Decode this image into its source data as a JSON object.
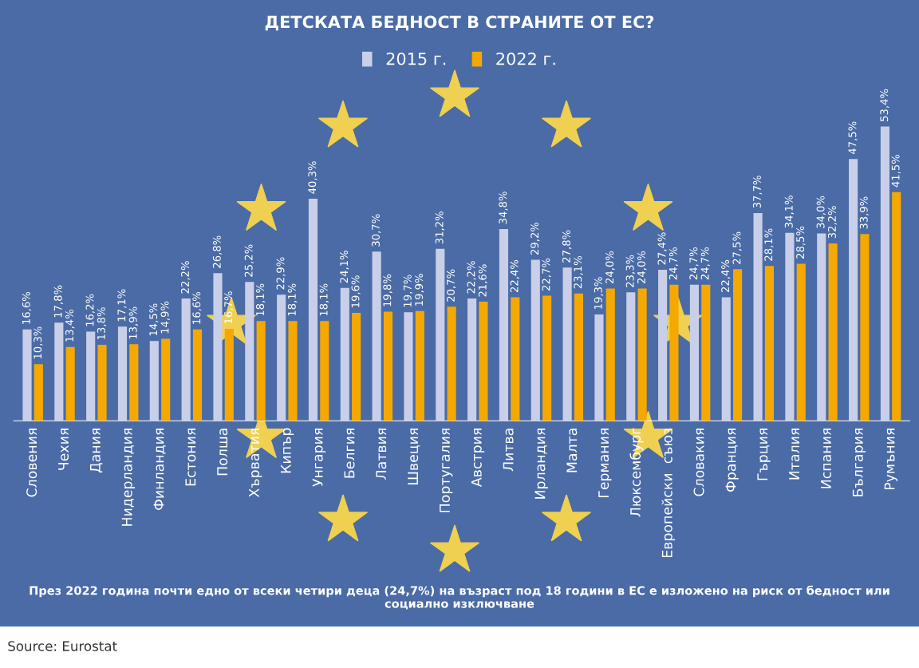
{
  "chart_data": {
    "type": "bar",
    "title": "ДЕТСКАТА БЕДНОСТ В СТРАНИТЕ ОТ ЕС?",
    "categories": [
      "Словения",
      "Чехия",
      "Дания",
      "Нидерландия",
      "Финландия",
      "Естония",
      "Полша",
      "Хърватия",
      "Кипър",
      "Унгария",
      "Белгия",
      "Латвия",
      "Швеция",
      "Португалия",
      "Австрия",
      "Литва",
      "Ирландия",
      "Малта",
      "Германия",
      "Люксембург",
      "Европейски  съюз",
      "Словакия",
      "Франция",
      "Гърция",
      "Италия",
      "Испания",
      "България",
      "Румъния"
    ],
    "series": [
      {
        "name": "2015 г.",
        "color": "#c9cfe8",
        "values": [
          16.6,
          17.8,
          16.2,
          17.1,
          14.5,
          22.2,
          26.8,
          25.2,
          22.9,
          40.3,
          24.1,
          30.7,
          19.7,
          31.2,
          22.2,
          34.8,
          29.2,
          27.8,
          19.3,
          23.3,
          27.4,
          24.7,
          22.4,
          37.7,
          34.1,
          34.0,
          47.5,
          53.4
        ],
        "value_labels": [
          "16,6%",
          "17,8%",
          "16,2%",
          "17,1%",
          "14,5%",
          "22,2%",
          "26,8%",
          "25,2%",
          "22,9%",
          "40,3%",
          "24,1%",
          "30,7%",
          "19,7%",
          "31,2%",
          "22,2%",
          "34,8%",
          "29,2%",
          "27,8%",
          "19,3%",
          "23,3%",
          "27,4%",
          "24,7%",
          "22,4%",
          "37,7%",
          "34,1%",
          "34,0%",
          "47,5%",
          "53,4%"
        ]
      },
      {
        "name": "2022 г.",
        "color": "#f5a800",
        "values": [
          10.3,
          13.4,
          13.8,
          13.9,
          14.9,
          16.6,
          16.7,
          18.1,
          18.1,
          18.1,
          19.6,
          19.8,
          19.9,
          20.7,
          21.6,
          22.4,
          22.7,
          23.1,
          24.0,
          24.0,
          24.7,
          24.7,
          27.5,
          28.1,
          28.5,
          32.2,
          33.9,
          41.5
        ],
        "value_labels": [
          "10,3%",
          "13,4%",
          "13,8%",
          "13,9%",
          "14,9%",
          "16,6%",
          "16,7%",
          "18,1%",
          "18,1%",
          "18,1%",
          "19,6%",
          "19,8%",
          "19,9%",
          "20,7%",
          "21,6%",
          "22,4%",
          "22,7%",
          "23,1%",
          "24,0%",
          "24,0%",
          "24,7%",
          "24,7%",
          "27,5%",
          "28,1%",
          "28,5%",
          "32,2%",
          "33,9%",
          "41,5%"
        ]
      }
    ],
    "legend": "top",
    "annotations": [
      "През 2022 година почти едно от всеки четири деца (24,7%) на възраст под 18 години в ЕС е изложено на риск от бедност или социално изключване",
      "Source: Eurostat"
    ]
  }
}
